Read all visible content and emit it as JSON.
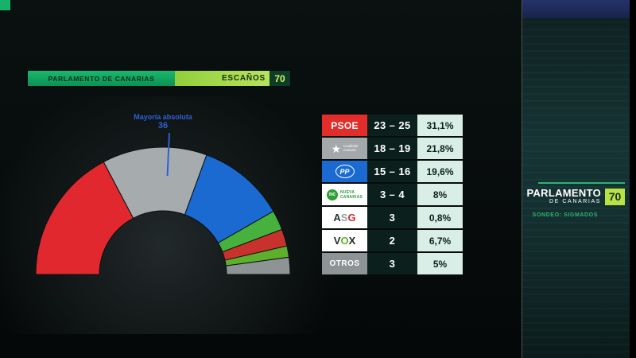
{
  "theme": {
    "accent_green": "#17b26a",
    "accent_lime": "#b9e344",
    "majority_blue": "#2f5fd6",
    "panel_navy": "#1e2c58",
    "seats_cell_bg": "#0b201d",
    "pct_cell_bg": "#d9eee6"
  },
  "header": {
    "left_label": "PARLAMENTO DE CANARIAS",
    "seats_label": "ESCAÑOS",
    "seats_value": "70"
  },
  "chart_data": {
    "type": "pie",
    "variant": "hemicycle",
    "title": "PARLAMENTO DE CANARIAS",
    "total_seats": 70,
    "majority": {
      "label": "Mayoría absoluta",
      "seats": 36
    },
    "legend_position": "right-table",
    "series": [
      {
        "party": "PSOE",
        "seats_label": "23 – 25",
        "seats_mid": 24,
        "pct_label": "31,1%",
        "color": "#e0282e"
      },
      {
        "party": "CC",
        "seats_label": "18 – 19",
        "seats_mid": 18.5,
        "pct_label": "21,8%",
        "color": "#a6abae"
      },
      {
        "party": "PP",
        "seats_label": "15 – 16",
        "seats_mid": 15.5,
        "pct_label": "19,6%",
        "color": "#1a6ad1"
      },
      {
        "party": "NC",
        "seats_label": "3 – 4",
        "seats_mid": 3.5,
        "pct_label": "8%",
        "color": "#46b13c"
      },
      {
        "party": "ASG",
        "seats_label": "3",
        "seats_mid": 3,
        "pct_label": "0,8%",
        "color": "#c8322c"
      },
      {
        "party": "VOX",
        "seats_label": "2",
        "seats_mid": 2,
        "pct_label": "6,7%",
        "color": "#5cb02c"
      },
      {
        "party": "OTROS",
        "seats_label": "3",
        "seats_mid": 3,
        "pct_label": "5%",
        "color": "#8e9396"
      }
    ]
  },
  "logos": {
    "psoe": "PSOE",
    "cc_star": "★",
    "cc_text_1": "Coalición",
    "cc_text_2": "Canaria",
    "pp": "PP",
    "nc_initial": "nc",
    "nc_text_1": "NUEVA",
    "nc_text_2": "CANARIAS",
    "asg_a": "A",
    "asg_s": "S",
    "asg_g": "G",
    "vox_v": "V",
    "vox_o": "O",
    "vox_x": "X",
    "otros": "OTROS"
  },
  "sidebar": {
    "title_line1": "PARLAMENTO",
    "title_line2": "DE CANARIAS",
    "seats_value": "70",
    "source": "SONDEO: SIGMADOS"
  }
}
